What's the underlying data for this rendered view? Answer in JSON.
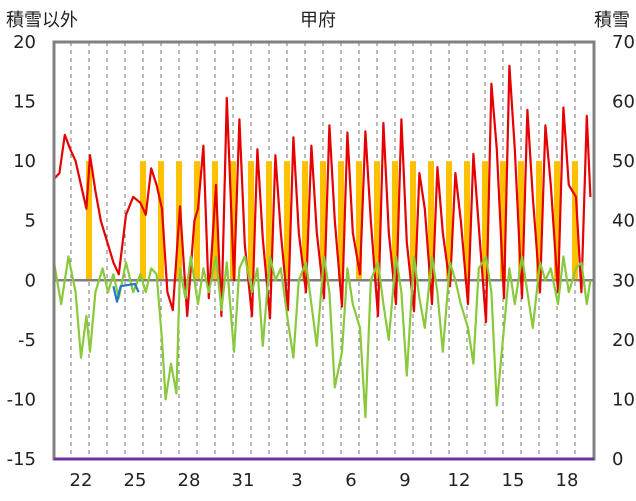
{
  "chart_data": {
    "type": "line",
    "title": "甲府",
    "y_left_label": "積雪以外",
    "y_right_label": "積雪",
    "y_left_ticks": [
      "20",
      "15",
      "10",
      "5",
      "0",
      "-5",
      "-10",
      "-15"
    ],
    "y_right_ticks": [
      "70",
      "60",
      "50",
      "40",
      "30",
      "20",
      "10",
      "0"
    ],
    "y_left_range": [
      -15,
      20
    ],
    "y_right_range": [
      0,
      70
    ],
    "x_tick_labels": [
      "22",
      "25",
      "28",
      "31",
      "3",
      "6",
      "9",
      "12",
      "15",
      "18"
    ],
    "days": 30,
    "series": [
      {
        "color": "#e60000",
        "t": [
          0,
          0.3,
          0.6,
          0.9,
          1.2,
          1.5,
          1.8,
          2.0,
          2.3,
          2.6,
          3.0,
          3.3,
          3.6,
          4.0,
          4.4,
          4.8,
          5.1,
          5.4,
          5.7,
          6.0,
          6.3,
          6.6,
          7.0,
          7.4,
          7.8,
          8.0,
          8.3,
          8.6,
          9.0,
          9.3,
          9.6,
          10.0,
          10.3,
          10.6,
          11.0,
          11.3,
          11.6,
          12.0,
          12.3,
          12.6,
          13.0,
          13.3,
          13.6,
          14.0,
          14.3,
          14.6,
          15.0,
          15.3,
          15.6,
          16.0,
          16.3,
          16.6,
          17.0,
          17.3,
          17.6,
          18.0,
          18.3,
          18.6,
          19.0,
          19.3,
          19.6,
          20.0,
          20.3,
          20.6,
          21.0,
          21.3,
          21.6,
          22.0,
          22.3,
          22.6,
          23.0,
          23.3,
          23.6,
          24.0,
          24.3,
          24.6,
          25.0,
          25.3,
          25.6,
          26.0,
          26.3,
          26.6,
          27.0,
          27.3,
          27.6,
          28.0,
          28.3,
          28.6,
          29.0,
          29.3,
          29.6,
          29.8
        ],
        "v": [
          8.5,
          9,
          12.2,
          11,
          10,
          8,
          6,
          10.5,
          7.5,
          5,
          3,
          1.5,
          0.5,
          5.5,
          7,
          6.5,
          5.5,
          9.4,
          8,
          6,
          -1,
          -2.5,
          6.2,
          -3,
          5,
          6,
          11.3,
          -1.5,
          8,
          -3,
          15.3,
          0,
          13.5,
          3,
          -3,
          11,
          3.5,
          -3.2,
          10.5,
          4,
          -2.5,
          12,
          4,
          -1,
          11.3,
          4,
          -1.5,
          13,
          5,
          -2.2,
          12.4,
          4,
          0.5,
          12.5,
          5,
          -3,
          13.2,
          4,
          -2,
          13.5,
          3.2,
          -2.6,
          9,
          6,
          -2,
          9.5,
          4,
          -0.5,
          9,
          5,
          -2,
          10.6,
          4.5,
          -3.5,
          16.5,
          11,
          -1.5,
          18,
          11,
          -1.5,
          14.3,
          7,
          -1,
          13,
          8,
          -1,
          14.5,
          8,
          7,
          -1,
          13.8,
          7
        ]
      },
      {
        "color": "#8ac83c",
        "t": [
          0,
          0.4,
          0.8,
          1.2,
          1.5,
          1.8,
          2.0,
          2.3,
          2.7,
          3.0,
          3.3,
          3.6,
          4.0,
          4.4,
          4.8,
          5.1,
          5.4,
          5.7,
          6.0,
          6.2,
          6.5,
          6.8,
          7.0,
          7.3,
          7.6,
          8.0,
          8.3,
          8.6,
          9.0,
          9.3,
          9.6,
          10.0,
          10.3,
          10.6,
          11.0,
          11.3,
          11.6,
          12.0,
          12.3,
          12.6,
          13.0,
          13.3,
          13.6,
          14.0,
          14.3,
          14.6,
          15.0,
          15.3,
          15.6,
          16.0,
          16.3,
          16.6,
          17.0,
          17.3,
          17.6,
          18.0,
          18.3,
          18.6,
          19.0,
          19.3,
          19.6,
          20.0,
          20.3,
          20.6,
          21.0,
          21.3,
          21.6,
          22.0,
          22.3,
          22.6,
          23.0,
          23.3,
          23.6,
          24.0,
          24.3,
          24.6,
          25.0,
          25.3,
          25.6,
          26.0,
          26.3,
          26.6,
          27.0,
          27.3,
          27.6,
          28.0,
          28.3,
          28.6,
          29.0,
          29.3,
          29.6,
          29.8
        ],
        "v": [
          1.5,
          -2,
          2,
          -1,
          -6.5,
          -3,
          -6,
          -1,
          1,
          -1,
          0.5,
          -1.5,
          1.5,
          -1,
          0.5,
          -1,
          1,
          0.5,
          -5,
          -10,
          -7,
          -9.5,
          1,
          -1.5,
          2,
          -2,
          1,
          -1,
          2,
          -2.5,
          1.5,
          -6,
          1,
          2,
          -1,
          1,
          -5.5,
          2,
          0,
          1,
          -3.5,
          -6.5,
          0,
          1.5,
          -2,
          -5.5,
          2,
          -1,
          -9,
          -6,
          1,
          -2,
          -4,
          -11.5,
          0,
          1.5,
          -2,
          -5,
          2,
          -1,
          -8,
          2,
          -1.5,
          -4,
          2,
          -1,
          -6,
          1.5,
          0,
          -2,
          -4,
          -7,
          1,
          2,
          -1,
          -10.5,
          -4,
          1,
          -2,
          2,
          -1,
          -4,
          1.5,
          0,
          1,
          -2,
          2,
          -1,
          1,
          1.5,
          -2,
          0
        ]
      },
      {
        "color": "#1f78c8",
        "t": [
          3.3,
          3.5,
          3.7,
          4.5,
          4.7
        ],
        "v": [
          -0.5,
          -1.8,
          -0.5,
          -0.3,
          -1
        ]
      }
    ],
    "snow_bars": {
      "color": "#ffc000",
      "axis": "right",
      "days": [
        2,
        5,
        6,
        7,
        8,
        9,
        10,
        11,
        12,
        13,
        14,
        15,
        16,
        17,
        18,
        19,
        20,
        21,
        22,
        23,
        24,
        25,
        26,
        27,
        28,
        29
      ],
      "value": 50
    }
  }
}
